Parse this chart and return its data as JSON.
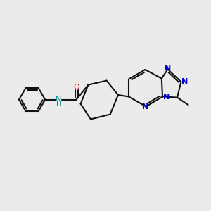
{
  "bg": "#ebebeb",
  "bc": "#111111",
  "nc": "#0000cc",
  "oc": "#cc0000",
  "nhc": "#008888",
  "lw": 1.5,
  "fs": 8.0,
  "figsize": [
    3.0,
    3.0
  ],
  "dpi": 100,
  "xlim": [
    0,
    10
  ],
  "ylim": [
    0,
    10
  ]
}
